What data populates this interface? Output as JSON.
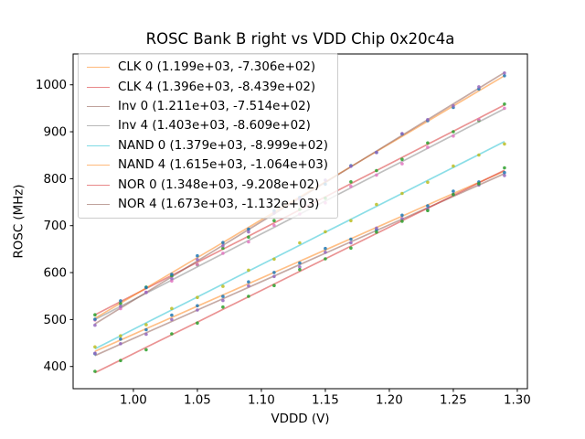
{
  "title": "ROSC Bank B right vs VDD Chip 0x20c4a",
  "chart_data": {
    "type": "scatter",
    "title": "ROSC Bank B right vs VDD Chip 0x20c4a",
    "xlabel": "VDDD (V)",
    "ylabel": "ROSC (MHz)",
    "xlim": [
      0.9529,
      1.3079
    ],
    "ylim": [
      352.7,
      1065.7
    ],
    "x_ticks": [
      1.0,
      1.05,
      1.1,
      1.15,
      1.2,
      1.25,
      1.3
    ],
    "x_tick_labels": [
      "1.00",
      "1.05",
      "1.10",
      "1.15",
      "1.20",
      "1.25",
      "1.30"
    ],
    "y_ticks": [
      400,
      500,
      600,
      700,
      800,
      900,
      1000
    ],
    "y_tick_labels": [
      "400",
      "500",
      "600",
      "700",
      "800",
      "900",
      "1000"
    ],
    "grid": false,
    "legend_position": "upper left",
    "x": [
      0.97,
      0.99,
      1.01,
      1.03,
      1.05,
      1.07,
      1.09,
      1.11,
      1.13,
      1.15,
      1.17,
      1.19,
      1.21,
      1.23,
      1.25,
      1.27,
      1.29
    ],
    "series": [
      {
        "name": "CLK 0",
        "legend_label": "CLK 0 (1.199e+03, -7.306e+02)",
        "fit_slope": 1199,
        "fit_intercept": -730.6,
        "line_color": "#ff7f0e",
        "dot_color": "#1f77b4",
        "y": [
          432.4,
          456.4,
          480.4,
          504.4,
          528.4,
          552.3,
          576.3,
          600.3,
          624.3,
          648.3,
          672.2,
          696.2,
          720.2,
          744.2,
          768.2,
          792.1,
          816.1
        ]
      },
      {
        "name": "CLK 4",
        "legend_label": "CLK 4 (1.396e+03, -8.439e+02)",
        "fit_slope": 1396,
        "fit_intercept": -843.9,
        "line_color": "#d62728",
        "dot_color": "#2ca02c",
        "y": [
          510.2,
          538.1,
          566.1,
          594.0,
          621.9,
          649.8,
          677.7,
          705.7,
          733.6,
          761.5,
          789.4,
          817.3,
          845.3,
          873.2,
          901.1,
          929.0,
          956.9
        ]
      },
      {
        "name": "Inv 0",
        "legend_label": "Inv 0 (1.211e+03, -7.514e+02)",
        "fit_slope": 1211,
        "fit_intercept": -751.4,
        "line_color": "#8c564b",
        "dot_color": "#9467bd",
        "y": [
          423.3,
          447.5,
          471.7,
          495.9,
          520.2,
          544.4,
          568.6,
          592.8,
          617.0,
          641.3,
          665.5,
          689.7,
          713.9,
          738.1,
          762.4,
          786.6,
          810.8
        ]
      },
      {
        "name": "Inv 4",
        "legend_label": "Inv 4 (1.403e+03, -8.609e+02)",
        "fit_slope": 1403,
        "fit_intercept": -860.9,
        "line_color": "#7f7f7f",
        "dot_color": "#e377c2",
        "y": [
          500.0,
          528.1,
          556.1,
          584.2,
          612.3,
          640.3,
          668.4,
          696.4,
          724.5,
          752.6,
          780.6,
          808.7,
          836.7,
          864.8,
          892.9,
          920.9,
          949.0
        ]
      },
      {
        "name": "NAND 0",
        "legend_label": "NAND 0 (1.379e+03, -8.999e+02)",
        "fit_slope": 1379,
        "fit_intercept": -899.9,
        "line_color": "#17becf",
        "dot_color": "#bcbd22",
        "y": [
          437.7,
          465.3,
          492.9,
          520.5,
          548.1,
          575.6,
          603.2,
          630.8,
          658.4,
          686.0,
          713.5,
          741.1,
          768.7,
          796.3,
          823.9,
          851.4,
          879.0
        ]
      },
      {
        "name": "NAND 4",
        "legend_label": "NAND 4 (1.615e+03, -1.064e+03)",
        "fit_slope": 1615,
        "fit_intercept": -1064,
        "line_color": "#ff7f0e",
        "dot_color": "#1f77b4",
        "y": [
          502.6,
          534.9,
          567.2,
          599.5,
          631.8,
          664.1,
          696.4,
          728.7,
          761.0,
          793.3,
          825.6,
          857.9,
          890.2,
          922.5,
          954.8,
          987.1,
          1019.4
        ]
      },
      {
        "name": "NOR 0",
        "legend_label": "NOR 0 (1.348e+03, -9.208e+02)",
        "fit_slope": 1348,
        "fit_intercept": -920.8,
        "line_color": "#d62728",
        "dot_color": "#2ca02c",
        "y": [
          386.8,
          413.7,
          440.7,
          467.6,
          494.6,
          521.6,
          548.5,
          575.5,
          602.4,
          629.4,
          656.4,
          683.3,
          710.3,
          737.2,
          764.2,
          791.2,
          818.1
        ]
      },
      {
        "name": "NOR 4",
        "legend_label": "NOR 4 (1.673e+03, -1.132e+03)",
        "fit_slope": 1673,
        "fit_intercept": -1132,
        "line_color": "#8c564b",
        "dot_color": "#9467bd",
        "y": [
          490.8,
          524.3,
          557.7,
          591.2,
          624.7,
          658.1,
          691.6,
          725.0,
          758.5,
          792.0,
          825.4,
          858.9,
          892.3,
          925.8,
          959.3,
          992.7,
          1026.2
        ]
      }
    ]
  }
}
